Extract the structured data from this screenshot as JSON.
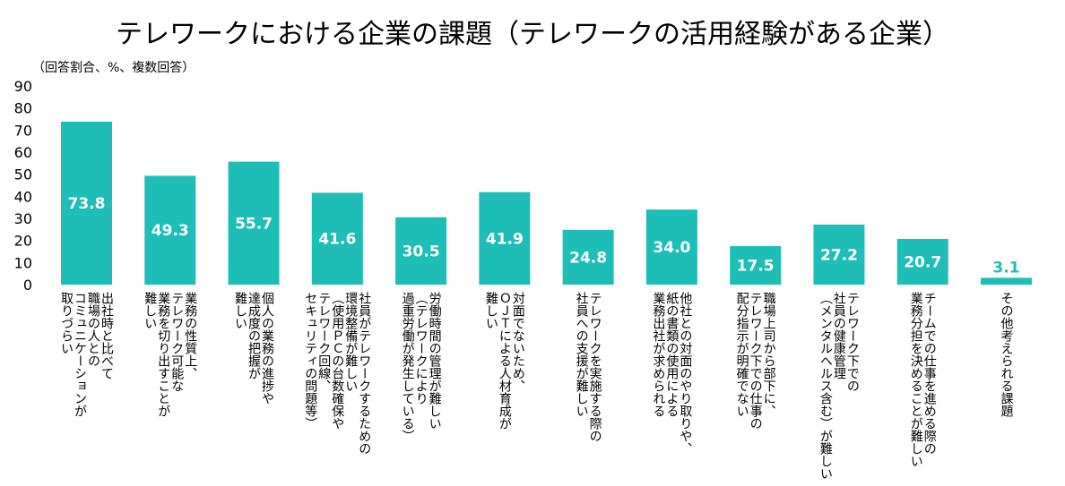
{
  "chart_data": {
    "type": "bar",
    "title": "テレワークにおける企業の課題（テレワークの活用経験がある企業）",
    "subtitle": "（回答割合、%、複数回答）",
    "ylim": [
      0,
      90
    ],
    "yticks": [
      0,
      10,
      20,
      30,
      40,
      50,
      60,
      70,
      80,
      90
    ],
    "bar_color": "#1ebeb6",
    "label_color_inside": "#ffffff",
    "label_color_outside": "#1ebeb6",
    "categories": [
      "出社時と比べて\n職場の人との\nコミュニケーションが\n取りづらい",
      "業務の性質上、\nテレワーク可能な\n業務を切り出すことが\n難しい",
      "個人の業務の進捗や\n達成度の把握が\n難しい",
      "社員がテレワークするための\n環境整備が難しい\n（使用ＰＣの台数確保や\nテレワーク回線、\nセキュリティの問題等）",
      "労働時間の管理が難しい\n（テレワークにより\n過重労働が発生している）",
      "対面でないため、\nＯＪＴによる人材育成が\n難しい",
      "テレワークを実施する際の\n社員への支援が難しい",
      "他社との対面のやり取りや、\n紙の書類の使用による\n業務出社が求められる",
      "職場上司から部下に、\nテレワーク下での仕事の\n配分指示が明確でない",
      "テレワーク下での\n社員の健康管理\n（メンタルヘルス含む）が難しい",
      "チームでの仕事を進める際の\n業務分担を決めることが難しい",
      "その他考えられる課題"
    ],
    "values": [
      73.8,
      49.3,
      55.7,
      41.6,
      30.5,
      41.9,
      24.8,
      34.0,
      17.5,
      27.2,
      20.7,
      3.1
    ],
    "value_labels": [
      "73.8",
      "49.3",
      "55.7",
      "41.6",
      "30.5",
      "41.9",
      "24.8",
      "34.0",
      "17.5",
      "27.2",
      "20.7",
      "3.1"
    ]
  }
}
